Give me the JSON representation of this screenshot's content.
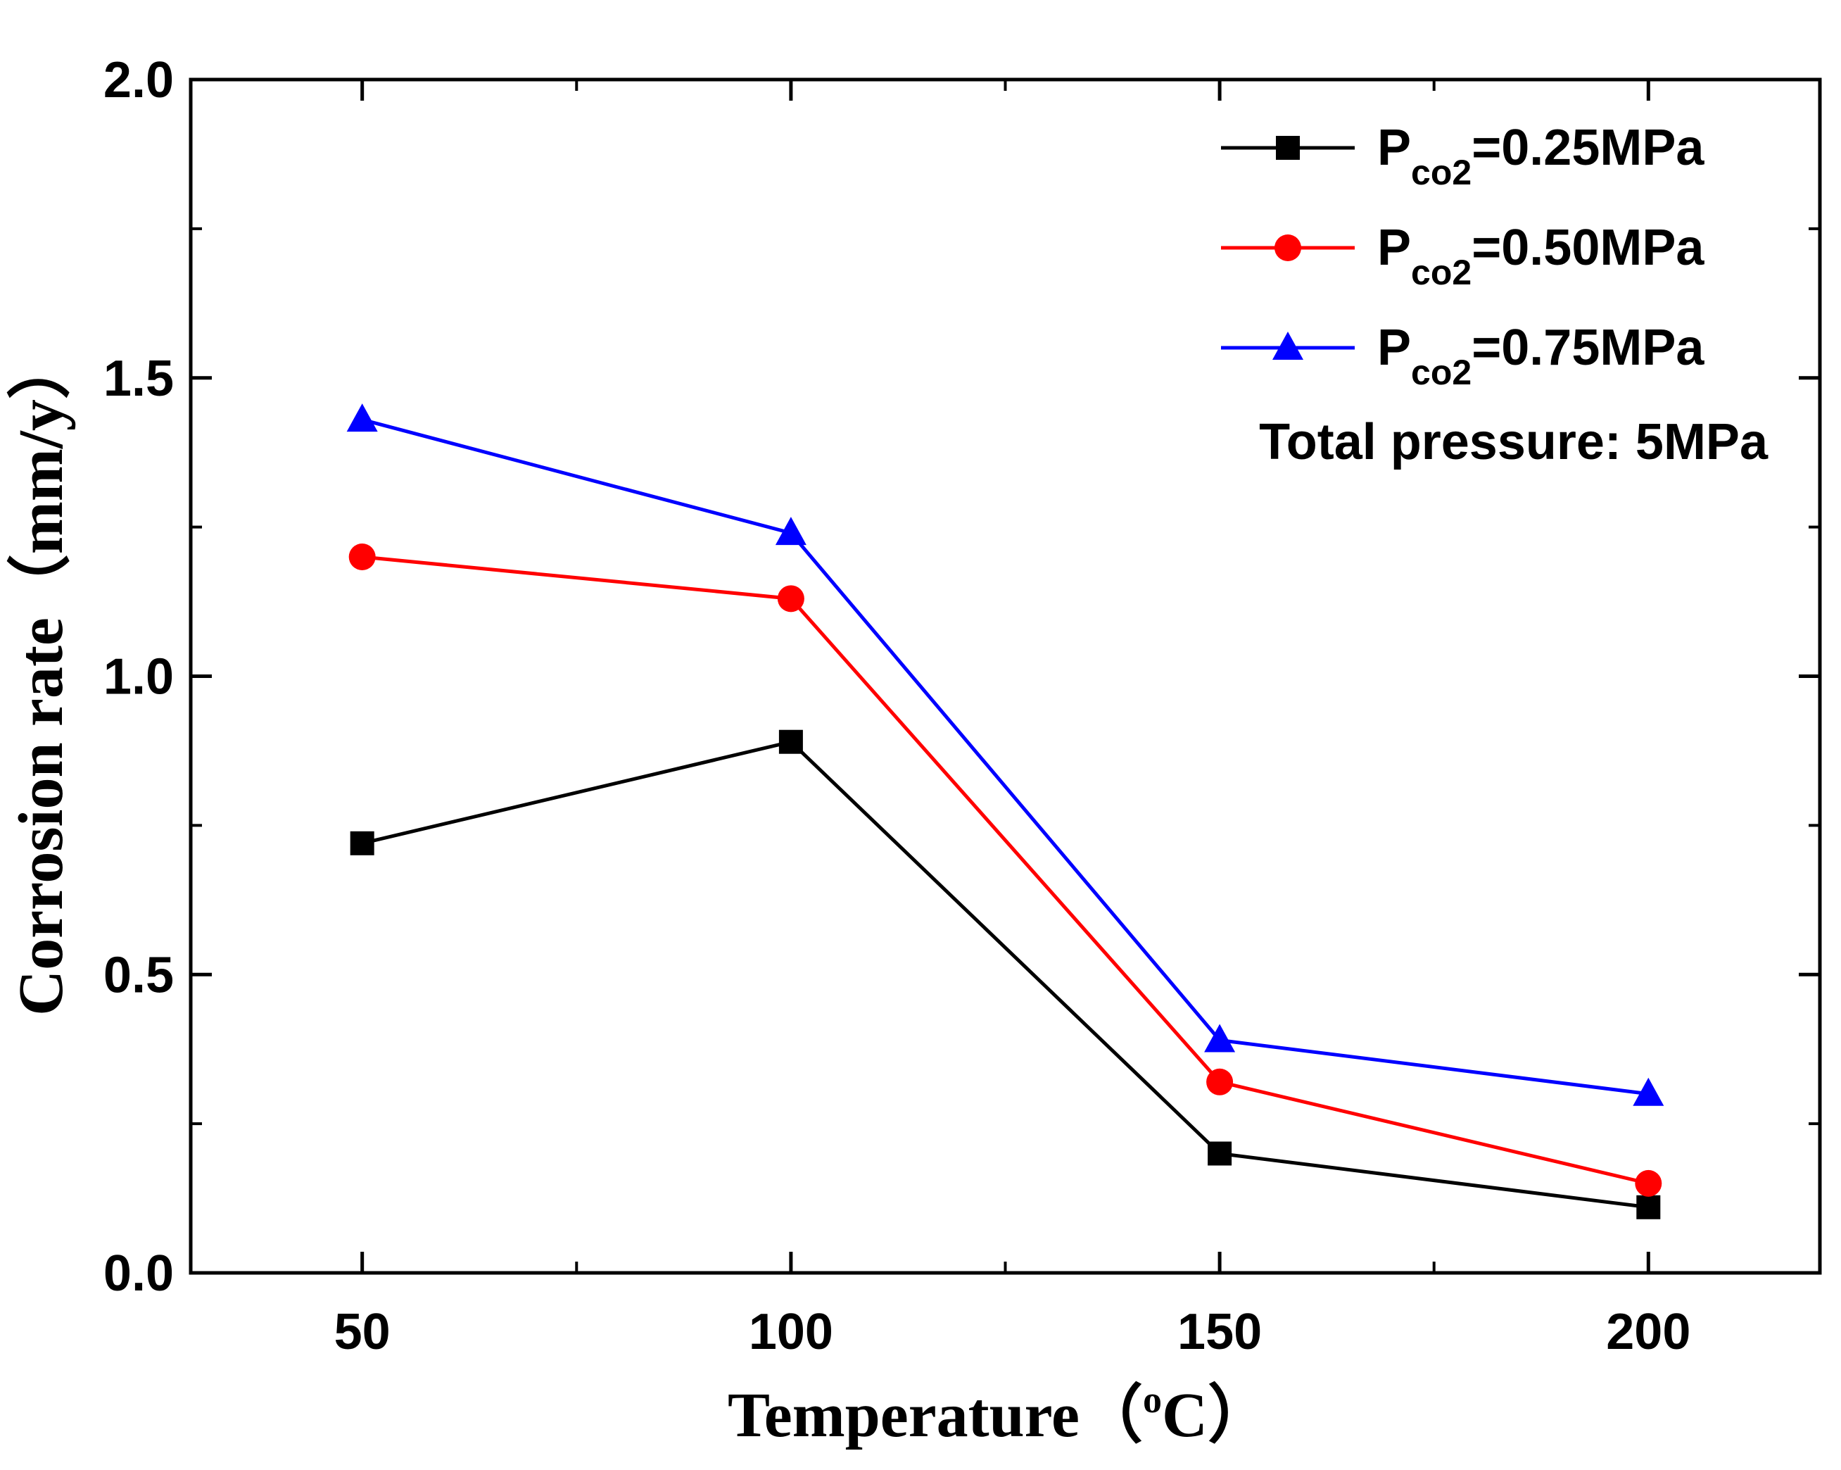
{
  "chart_data": {
    "type": "line",
    "title": "",
    "xlabel": "Temperature（°C）",
    "xlabel_main": "Temperature",
    "xlabel_open": "（",
    "xlabel_sup": "o",
    "xlabel_unit": "C",
    "xlabel_close": "）",
    "ylabel": "Corrosion rate（mm/y）",
    "x": [
      50,
      100,
      150,
      200
    ],
    "xlim": [
      30,
      220
    ],
    "ylim": [
      0.0,
      2.0
    ],
    "xticks": [
      50,
      100,
      150,
      200
    ],
    "xtick_labels": [
      "50",
      "100",
      "150",
      "200"
    ],
    "xminor": [
      75,
      125,
      175
    ],
    "yticks": [
      0.0,
      0.5,
      1.0,
      1.5,
      2.0
    ],
    "ytick_labels": [
      "0.0",
      "0.5",
      "1.0",
      "1.5",
      "2.0"
    ],
    "yminor": [
      0.25,
      0.75,
      1.25,
      1.75
    ],
    "grid": false,
    "legend_position": "top-right",
    "series": [
      {
        "name": "Pco2=0.25MPa",
        "label_main": "P",
        "label_sub": "co2",
        "label_rest": "=0.25MPa",
        "color": "#000000",
        "marker": "square",
        "values": [
          0.72,
          0.89,
          0.2,
          0.11
        ]
      },
      {
        "name": "Pco2=0.50MPa",
        "label_main": "P",
        "label_sub": "co2",
        "label_rest": "=0.50MPa",
        "color": "#ff0000",
        "marker": "circle",
        "values": [
          1.2,
          1.13,
          0.32,
          0.15
        ]
      },
      {
        "name": "Pco2=0.75MPa",
        "label_main": "P",
        "label_sub": "co2",
        "label_rest": "=0.75MPa",
        "color": "#0000ff",
        "marker": "triangle",
        "values": [
          1.43,
          1.24,
          0.39,
          0.3
        ]
      }
    ],
    "annotation": "Total pressure: 5MPa"
  }
}
